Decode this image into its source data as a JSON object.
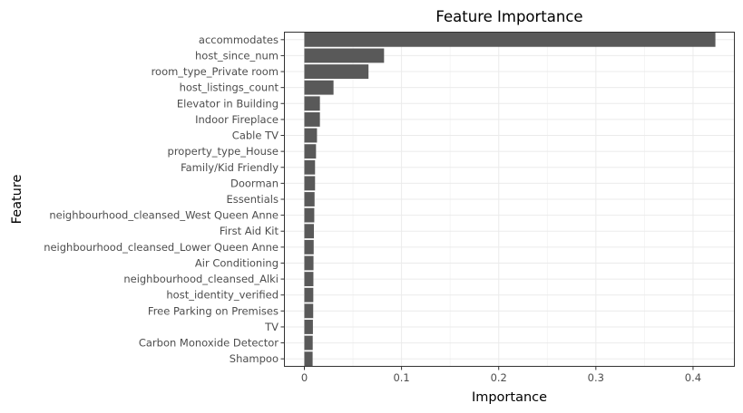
{
  "chart_data": {
    "type": "bar",
    "orientation": "horizontal",
    "title": "Feature Importance",
    "xlabel": "Importance",
    "ylabel": "Feature",
    "xlim": [
      -0.021,
      0.443
    ],
    "xticks": [
      0,
      0.1,
      0.2,
      0.3,
      0.4
    ],
    "xtick_labels": [
      "0",
      "0.1",
      "0.2",
      "0.3",
      "0.4"
    ],
    "grid": true,
    "bar_color": "#595959",
    "categories": [
      "accommodates",
      "host_since_num",
      "room_type_Private room",
      "host_listings_count",
      "Elevator in Building",
      "Indoor Fireplace",
      "Cable TV",
      "property_type_House",
      "Family/Kid Friendly",
      "Doorman",
      "Essentials",
      "neighbourhood_cleansed_West Queen Anne",
      "First Aid Kit",
      "neighbourhood_cleansed_Lower Queen Anne",
      "Air Conditioning",
      "neighbourhood_cleansed_Alki",
      "host_identity_verified",
      "Free Parking on Premises",
      "TV",
      "Carbon Monoxide Detector",
      "Shampoo"
    ],
    "values": [
      0.423,
      0.082,
      0.066,
      0.03,
      0.016,
      0.016,
      0.013,
      0.012,
      0.011,
      0.011,
      0.0105,
      0.0102,
      0.0098,
      0.0096,
      0.0094,
      0.0093,
      0.0092,
      0.0091,
      0.0088,
      0.0086,
      0.0085
    ]
  }
}
